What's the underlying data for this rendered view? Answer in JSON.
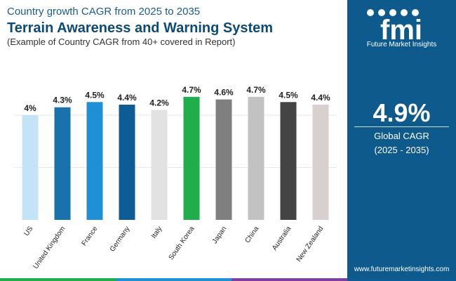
{
  "header": {
    "subtitle": "Country growth CAGR from 2025 to 2035",
    "title": "Terrain Awareness and Warning System",
    "caption": "(Example of Country CAGR from 40+ covered in Report)"
  },
  "sidebar": {
    "logo_text": "fmi",
    "logo_subtitle": "Future Market Insights",
    "global_cagr_value": "4.9%",
    "global_cagr_label": "Global CAGR",
    "global_cagr_period": "(2025 - 2035)",
    "website": "www.futuremarketinsights.com"
  },
  "chart_data": {
    "type": "bar",
    "categories": [
      "US",
      "United Kingdom",
      "France",
      "Germany",
      "Italy",
      "South Korea",
      "Japan",
      "China",
      "Australia",
      "New Zealand"
    ],
    "values": [
      4.0,
      4.3,
      4.5,
      4.4,
      4.2,
      4.7,
      4.6,
      4.7,
      4.5,
      4.4
    ],
    "data_labels": [
      "4%",
      "4.3%",
      "4.5%",
      "4.4%",
      "4.2%",
      "4.7%",
      "4.6%",
      "4.7%",
      "4.5%",
      "4.4%"
    ],
    "colors": [
      "#c5e3f6",
      "#1a72ac",
      "#1f8fd6",
      "#0d5c96",
      "#e2e2e2",
      "#1fae4b",
      "#7f7f7f",
      "#c2c2c2",
      "#444444",
      "#d8cfcf"
    ],
    "ylim": [
      0,
      5.5
    ],
    "grid": true,
    "title": "",
    "xlabel": "",
    "ylabel": ""
  },
  "footer_colors": [
    "#1fae4b",
    "#1f8fd6",
    "#7f3fa0",
    "#0d5c96"
  ]
}
